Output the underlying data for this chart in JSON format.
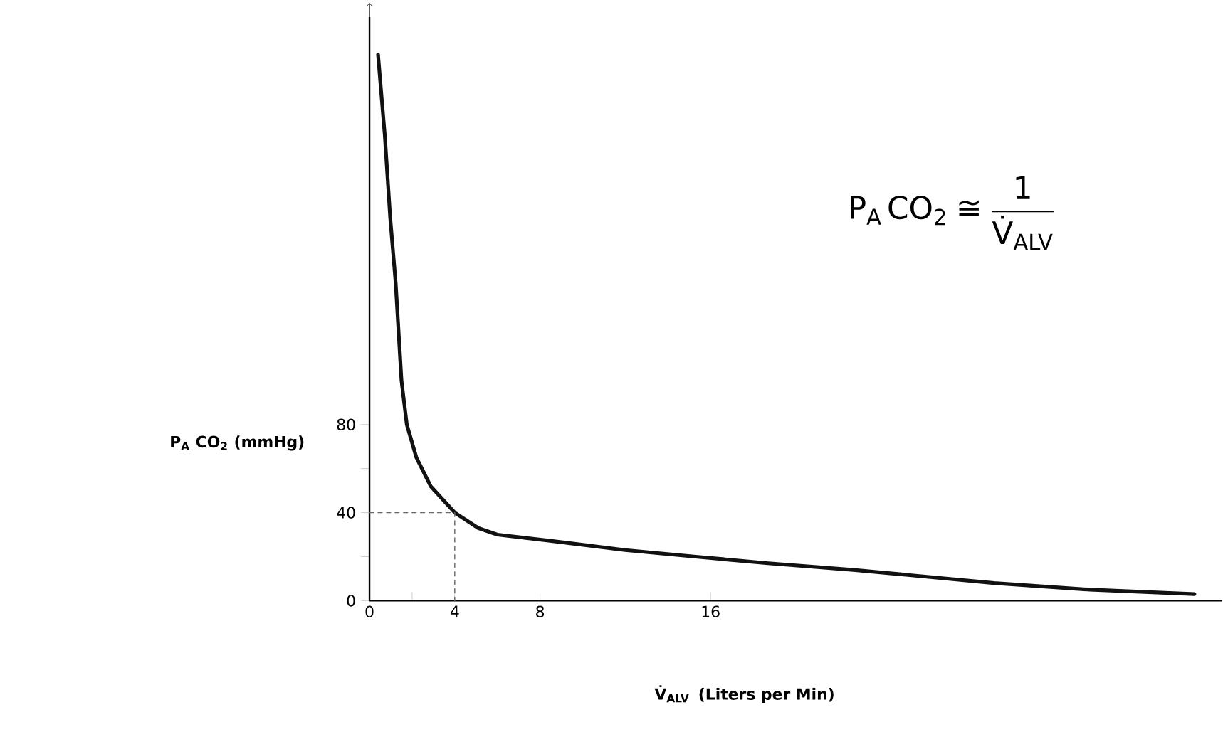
{
  "chart_data": {
    "type": "line",
    "xlabel": "\\textbf{V̇}_{\\textbf{ALV}}\\;\\;\\textbf{(Liters per Min)}",
    "ylabel": "P$_{A}$ CO$_{2}$ (mmHg)",
    "annotations": [
      "\\text{P}_{\\text{A}}\\,\\text{CO}_{\\text{2}} \\mathrel{\\text{≅}} \\frac{\\text{1}}{\\text{V̇}_{\\text{ALV}}}"
    ],
    "xlim": [
      0,
      40
    ],
    "ylim": [
      0,
      265
    ],
    "xticks": [
      0,
      {
        "value": 2,
        "label": null
      },
      4,
      8,
      16
    ],
    "yticks": [
      0,
      {
        "value": 20,
        "label": null
      },
      40,
      {
        "value": 60,
        "label": null
      },
      80
    ],
    "grid": false,
    "marker": "none",
    "series": [
      {
        "color": "#111111",
        "line_style": "solid",
        "x": [
          0.4,
          0.72,
          0.97,
          1.23,
          1.5,
          1.75,
          2.2,
          2.87,
          4,
          5.1,
          6,
          8.67,
          12,
          15.3,
          18.7,
          22.7,
          29.3,
          33.8,
          38.7
        ],
        "values": [
          248,
          211,
          174,
          144,
          100,
          80,
          65,
          52,
          40,
          33,
          30,
          27,
          23,
          20,
          17,
          14,
          8,
          5,
          3
        ]
      },
      {
        "color": "#666666",
        "line_style": "dashed",
        "x": [
          0,
          4,
          4
        ],
        "values": [
          40,
          40,
          0
        ]
      }
    ]
  }
}
